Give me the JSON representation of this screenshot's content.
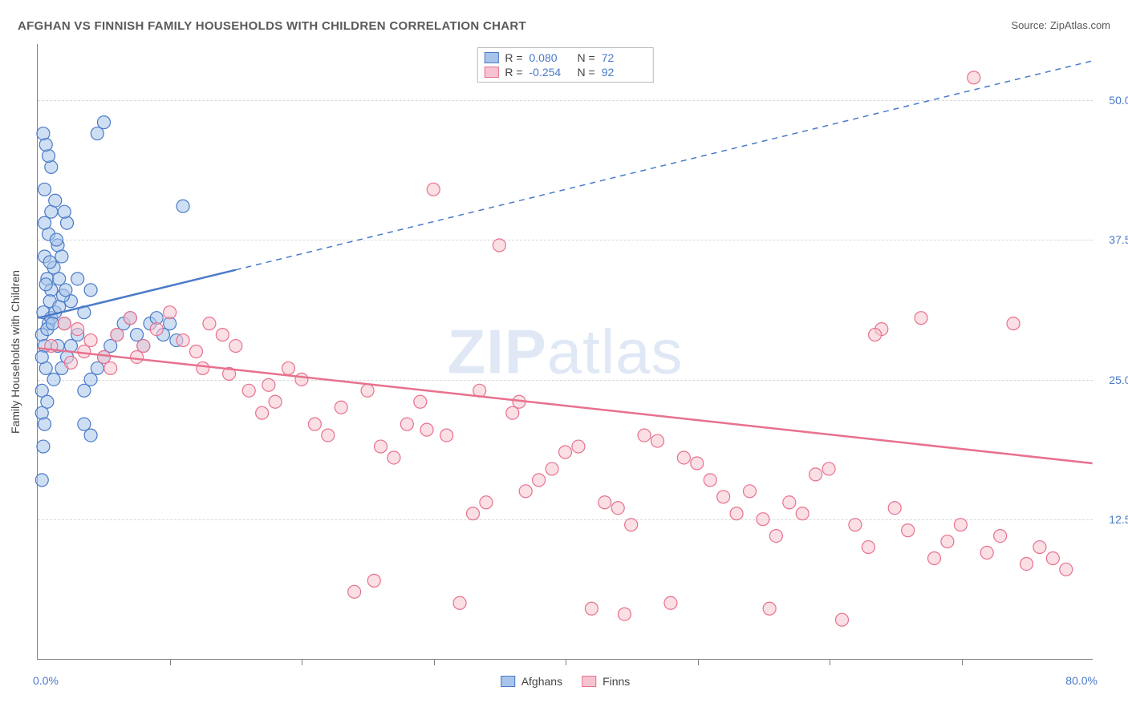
{
  "title": "AFGHAN VS FINNISH FAMILY HOUSEHOLDS WITH CHILDREN CORRELATION CHART",
  "source": "Source: ZipAtlas.com",
  "watermark_zip": "ZIP",
  "watermark_atlas": "atlas",
  "y_axis_title": "Family Households with Children",
  "chart": {
    "type": "scatter",
    "xlim": [
      0,
      80
    ],
    "ylim": [
      0,
      55
    ],
    "x_label_min": "0.0%",
    "x_label_max": "80.0%",
    "x_ticks": [
      10,
      20,
      30,
      40,
      50,
      60,
      70
    ],
    "y_gridlines": [
      {
        "value": 12.5,
        "label": "12.5%"
      },
      {
        "value": 25.0,
        "label": "25.0%"
      },
      {
        "value": 37.5,
        "label": "37.5%"
      },
      {
        "value": 50.0,
        "label": "50.0%"
      }
    ],
    "background_color": "#ffffff",
    "grid_color": "#d8d8d8",
    "axis_label_color": "#4a7ac8",
    "marker_radius": 8,
    "marker_opacity": 0.55,
    "series": [
      {
        "name": "Afghans",
        "color_stroke": "#4a7ac8",
        "color_fill": "#a8c4ea",
        "R": "0.080",
        "N": "72",
        "trend": {
          "solid": {
            "x1": 0,
            "y1": 30.5,
            "x2": 15,
            "y2": 34.8
          },
          "dashed": {
            "x1": 15,
            "y1": 34.8,
            "x2": 80,
            "y2": 53.5
          },
          "line_width": 2.5
        },
        "points": [
          [
            0.3,
            29
          ],
          [
            0.5,
            28
          ],
          [
            0.8,
            30
          ],
          [
            1.0,
            33
          ],
          [
            1.2,
            35
          ],
          [
            0.5,
            36
          ],
          [
            1.5,
            37
          ],
          [
            0.8,
            38
          ],
          [
            0.3,
            24
          ],
          [
            0.6,
            26
          ],
          [
            1.0,
            40
          ],
          [
            1.3,
            41
          ],
          [
            0.7,
            34
          ],
          [
            2.0,
            30
          ],
          [
            2.5,
            32
          ],
          [
            1.8,
            36
          ],
          [
            3.0,
            34
          ],
          [
            3.5,
            31
          ],
          [
            4.0,
            33
          ],
          [
            2.2,
            39
          ],
          [
            0.4,
            31
          ],
          [
            0.9,
            32
          ],
          [
            1.6,
            34
          ],
          [
            0.5,
            42
          ],
          [
            1.0,
            44
          ],
          [
            0.8,
            45
          ],
          [
            4.5,
            47
          ],
          [
            5.0,
            48
          ],
          [
            0.6,
            46
          ],
          [
            0.4,
            47
          ],
          [
            2.0,
            40
          ],
          [
            1.5,
            28
          ],
          [
            2.5,
            28
          ],
          [
            3.0,
            29
          ],
          [
            0.3,
            22
          ],
          [
            0.7,
            23
          ],
          [
            1.2,
            25
          ],
          [
            1.8,
            26
          ],
          [
            2.2,
            27
          ],
          [
            0.5,
            21
          ],
          [
            0.3,
            16
          ],
          [
            3.5,
            24
          ],
          [
            4.0,
            25
          ],
          [
            4.5,
            26
          ],
          [
            5.0,
            27
          ],
          [
            5.5,
            28
          ],
          [
            6.0,
            29
          ],
          [
            6.5,
            30
          ],
          [
            7.0,
            30.5
          ],
          [
            7.5,
            29
          ],
          [
            8.0,
            28
          ],
          [
            8.5,
            30
          ],
          [
            9.0,
            30.5
          ],
          [
            9.5,
            29
          ],
          [
            10.0,
            30
          ],
          [
            10.5,
            28.5
          ],
          [
            11.0,
            40.5
          ],
          [
            4.0,
            20
          ],
          [
            3.5,
            21
          ],
          [
            0.4,
            19
          ],
          [
            1.0,
            30.5
          ],
          [
            1.3,
            31
          ],
          [
            1.6,
            31.5
          ],
          [
            1.9,
            32.5
          ],
          [
            2.1,
            33
          ],
          [
            0.6,
            33.5
          ],
          [
            0.9,
            35.5
          ],
          [
            1.4,
            37.5
          ],
          [
            0.5,
            39
          ],
          [
            0.3,
            27
          ],
          [
            0.7,
            29.5
          ],
          [
            1.1,
            30
          ]
        ]
      },
      {
        "name": "Finns",
        "color_stroke": "#e8718d",
        "color_fill": "#f5c4d0",
        "R": "-0.254",
        "N": "92",
        "trend": {
          "solid": {
            "x1": 0,
            "y1": 27.8,
            "x2": 80,
            "y2": 17.5
          },
          "dashed": null,
          "line_width": 2.5
        },
        "points": [
          [
            1,
            28
          ],
          [
            2,
            30
          ],
          [
            3,
            29.5
          ],
          [
            4,
            28.5
          ],
          [
            5,
            27
          ],
          [
            6,
            29
          ],
          [
            7,
            30.5
          ],
          [
            8,
            28
          ],
          [
            9,
            29.5
          ],
          [
            10,
            31
          ],
          [
            11,
            28.5
          ],
          [
            12,
            27.5
          ],
          [
            13,
            30
          ],
          [
            14,
            29
          ],
          [
            15,
            28
          ],
          [
            16,
            24
          ],
          [
            17,
            22
          ],
          [
            18,
            23
          ],
          [
            19,
            26
          ],
          [
            20,
            25
          ],
          [
            21,
            21
          ],
          [
            22,
            20
          ],
          [
            23,
            22.5
          ],
          [
            24,
            6
          ],
          [
            25,
            24
          ],
          [
            26,
            19
          ],
          [
            27,
            18
          ],
          [
            28,
            21
          ],
          [
            29,
            23
          ],
          [
            30,
            42
          ],
          [
            31,
            20
          ],
          [
            32,
            5
          ],
          [
            33,
            13
          ],
          [
            34,
            14
          ],
          [
            35,
            37
          ],
          [
            36,
            22
          ],
          [
            37,
            15
          ],
          [
            38,
            16
          ],
          [
            39,
            17
          ],
          [
            40,
            18.5
          ],
          [
            41,
            19
          ],
          [
            42,
            4.5
          ],
          [
            43,
            14
          ],
          [
            44,
            13.5
          ],
          [
            45,
            12
          ],
          [
            46,
            20
          ],
          [
            47,
            19.5
          ],
          [
            48,
            5
          ],
          [
            49,
            18
          ],
          [
            50,
            17.5
          ],
          [
            51,
            16
          ],
          [
            52,
            14.5
          ],
          [
            53,
            13
          ],
          [
            54,
            15
          ],
          [
            55,
            12.5
          ],
          [
            56,
            11
          ],
          [
            57,
            14
          ],
          [
            58,
            13
          ],
          [
            59,
            16.5
          ],
          [
            60,
            17
          ],
          [
            61,
            3.5
          ],
          [
            62,
            12
          ],
          [
            63,
            10
          ],
          [
            64,
            29.5
          ],
          [
            65,
            13.5
          ],
          [
            66,
            11.5
          ],
          [
            67,
            30.5
          ],
          [
            68,
            9
          ],
          [
            69,
            10.5
          ],
          [
            70,
            12
          ],
          [
            71,
            52
          ],
          [
            72,
            9.5
          ],
          [
            73,
            11
          ],
          [
            74,
            30
          ],
          [
            75,
            8.5
          ],
          [
            76,
            10
          ],
          [
            77,
            9
          ],
          [
            78,
            8
          ],
          [
            2.5,
            26.5
          ],
          [
            3.5,
            27.5
          ],
          [
            5.5,
            26
          ],
          [
            7.5,
            27
          ],
          [
            12.5,
            26
          ],
          [
            14.5,
            25.5
          ],
          [
            17.5,
            24.5
          ],
          [
            25.5,
            7
          ],
          [
            29.5,
            20.5
          ],
          [
            33.5,
            24
          ],
          [
            36.5,
            23
          ],
          [
            44.5,
            4
          ],
          [
            55.5,
            4.5
          ],
          [
            63.5,
            29
          ]
        ]
      }
    ]
  },
  "legend_top_labels": {
    "R": "R =",
    "N": "N ="
  },
  "legend_bottom": [
    {
      "label": "Afghans",
      "stroke": "#4a7ac8",
      "fill": "#a8c4ea"
    },
    {
      "label": "Finns",
      "stroke": "#e8718d",
      "fill": "#f5c4d0"
    }
  ]
}
